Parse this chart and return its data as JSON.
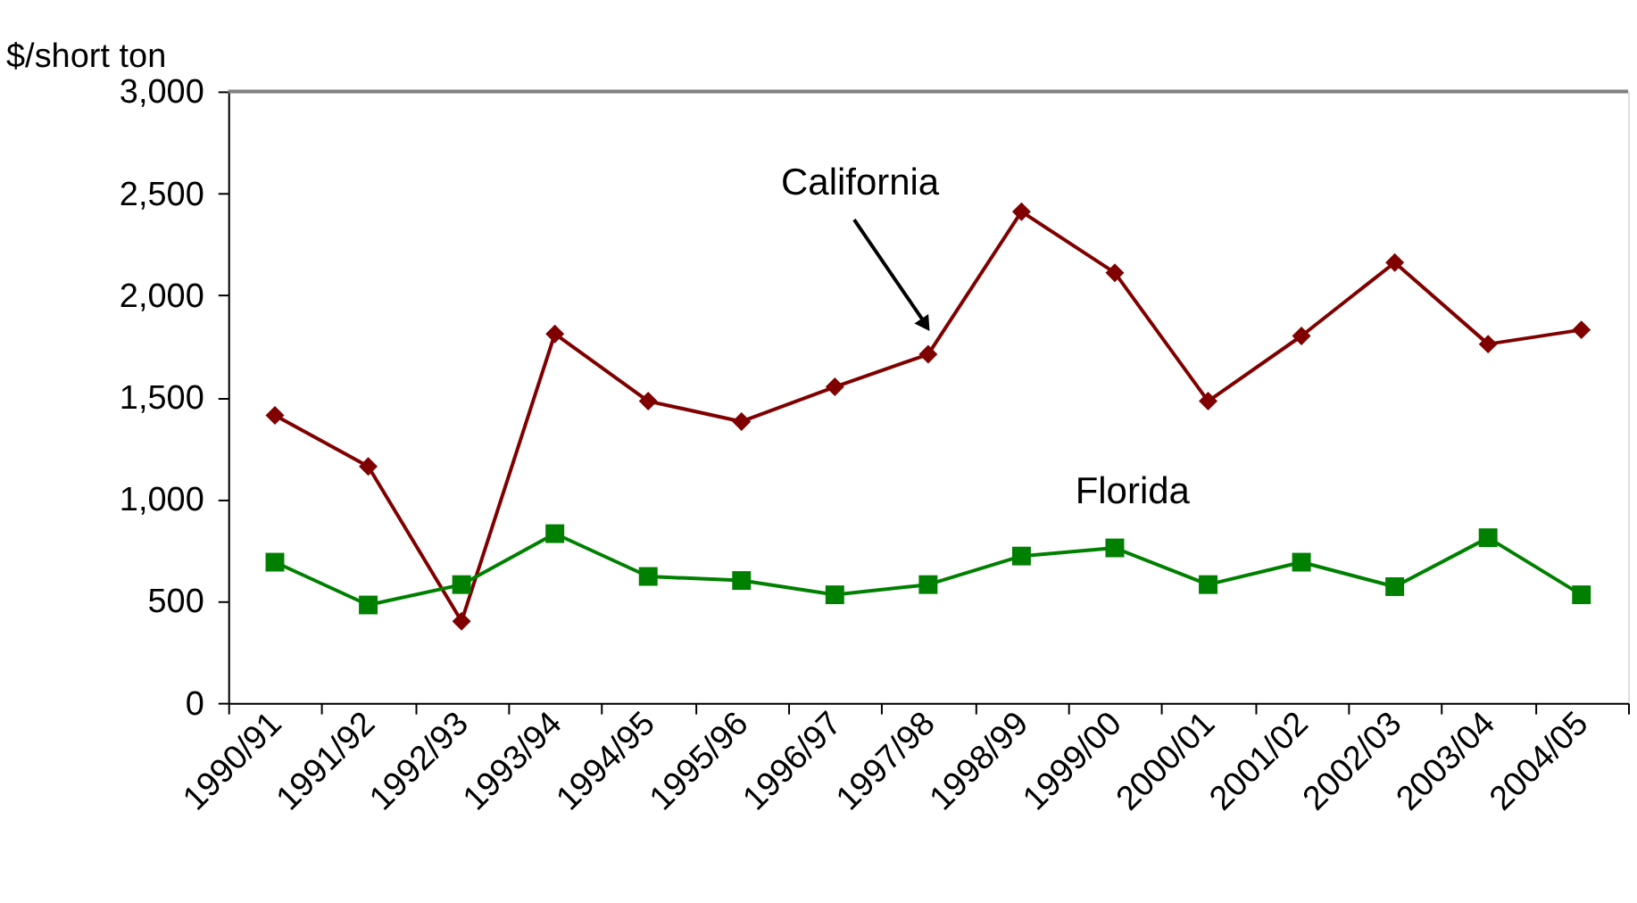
{
  "chart_data": {
    "type": "line",
    "ylabel": "$/short ton",
    "categories": [
      "1990/91",
      "1991/92",
      "1992/93",
      "1993/94",
      "1994/95",
      "1995/96",
      "1996/97",
      "1997/98",
      "1998/99",
      "1999/00",
      "2000/01",
      "2001/02",
      "2002/03",
      "2003/04",
      "2004/05"
    ],
    "series": [
      {
        "name": "California",
        "color": "#800000",
        "marker": "diamond",
        "values": [
          1410,
          1160,
          400,
          1810,
          1480,
          1380,
          1550,
          1710,
          2410,
          2110,
          1480,
          1800,
          2160,
          1760,
          1830
        ]
      },
      {
        "name": "Florida",
        "color": "#008000",
        "marker": "square",
        "values": [
          690,
          480,
          580,
          830,
          620,
          600,
          530,
          580,
          720,
          760,
          580,
          690,
          570,
          810,
          530
        ]
      }
    ],
    "ylim": [
      0,
      3000
    ],
    "yticks": [
      {
        "value": 0,
        "label": "0"
      },
      {
        "value": 500,
        "label": "500"
      },
      {
        "value": 1000,
        "label": "1,000"
      },
      {
        "value": 1500,
        "label": "1,500"
      },
      {
        "value": 2000,
        "label": "2,000"
      },
      {
        "value": 2500,
        "label": "2,500"
      },
      {
        "value": 3000,
        "label": "3,000"
      }
    ],
    "grid": false,
    "legend": false
  }
}
